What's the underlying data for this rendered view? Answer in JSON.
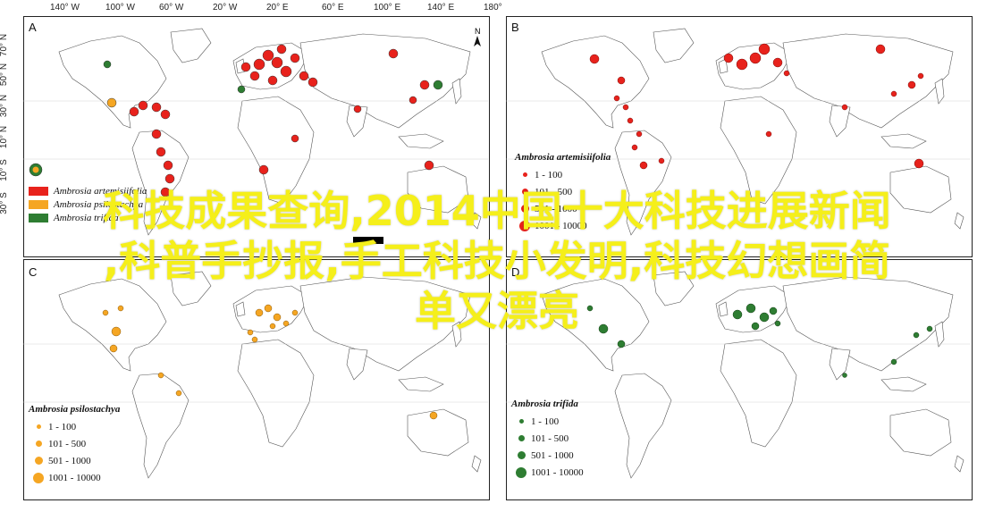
{
  "top_axis_labels": [
    "140° W",
    "100° W",
    "60° W",
    "20° W",
    "20° E",
    "60° E",
    "100° E",
    "140° E",
    "180°"
  ],
  "left_axis_labels": [
    "70° N",
    "50° N",
    "30° N",
    "10° N",
    "10° S",
    "30° S"
  ],
  "north_label": "N",
  "panels": [
    {
      "letter": "A",
      "legend_title": "",
      "legend_items": [
        "Ambrosia artemisiifolia",
        "Ambrosia psilostachya",
        "Ambrosia trifida"
      ]
    },
    {
      "letter": "B",
      "legend_title": "Ambrosia artemisiifolia",
      "legend_items": [
        "1 - 100",
        "101 - 500",
        "501 - 1000",
        "1001 - 10000"
      ],
      "color": "#e8221c"
    },
    {
      "letter": "C",
      "legend_title": "Ambrosia psilostachya",
      "legend_items": [
        "1 - 100",
        "101 - 500",
        "501 - 1000",
        "1001 - 10000"
      ],
      "color": "#f5a623"
    },
    {
      "letter": "D",
      "legend_title": "Ambrosia trifida",
      "legend_items": [
        "1 - 100",
        "101 - 500",
        "501 - 1000",
        "1001 - 10000"
      ],
      "color": "#2e7d32"
    }
  ],
  "legendA_colors": [
    "#e8221c",
    "#f5a623",
    "#2e7d32"
  ],
  "overlay_lines": [
    "科技成果查询,2014中国十大科技进展新闻",
    ",科普手抄报,手工科技小发明,科技幻想画简",
    "单又漂亮"
  ]
}
